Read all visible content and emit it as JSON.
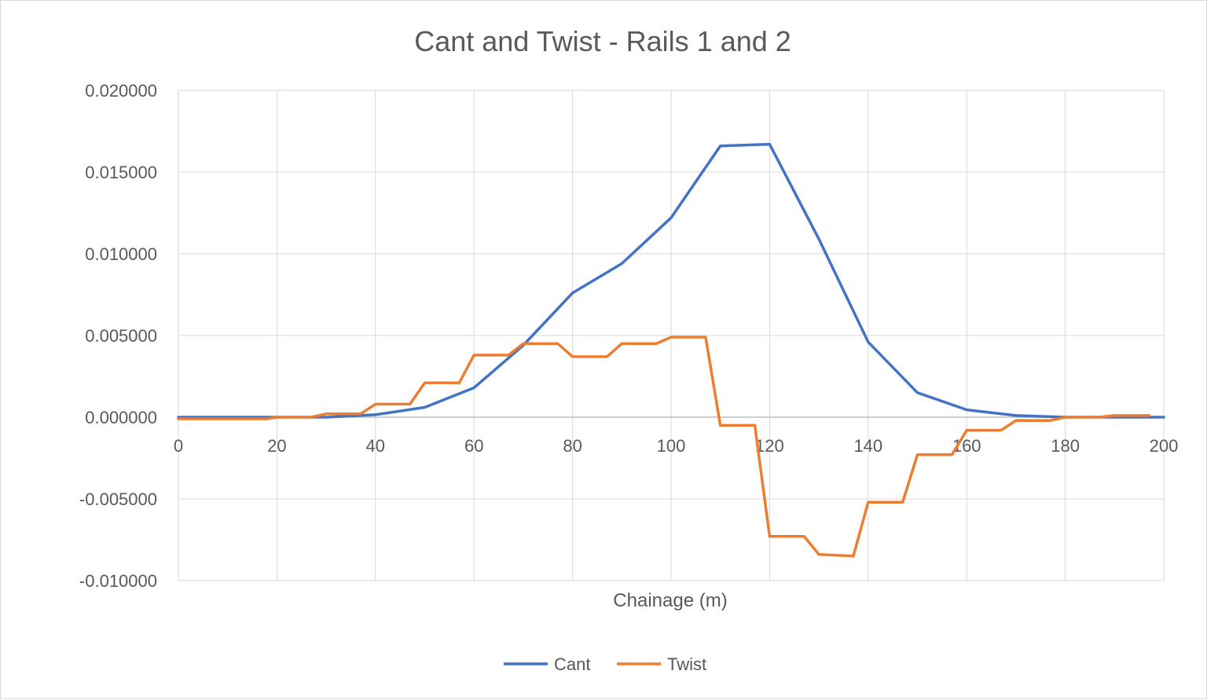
{
  "chart_data": {
    "type": "line",
    "title": "Cant and Twist - Rails 1 and 2",
    "xlabel": "Chainage (m)",
    "ylabel": "",
    "xlim": [
      0,
      200
    ],
    "ylim": [
      -0.01,
      0.02
    ],
    "x_ticks": [
      0,
      20,
      40,
      60,
      80,
      100,
      120,
      140,
      160,
      180,
      200
    ],
    "x_tick_labels": [
      "0",
      "20",
      "40",
      "60",
      "80",
      "100",
      "120",
      "140",
      "160",
      "180",
      "200"
    ],
    "y_ticks": [
      0.02,
      0.015,
      0.01,
      0.005,
      0.0,
      -0.005,
      -0.01
    ],
    "y_tick_labels": [
      "0.020000",
      "0.015000",
      "0.010000",
      "0.005000",
      "0.000000",
      "-0.005000",
      "-0.010000"
    ],
    "grid": true,
    "legend_position": "bottom-center",
    "series": [
      {
        "name": "Cant",
        "color": "#4472C4",
        "points": [
          [
            0,
            0.0
          ],
          [
            20,
            0.0
          ],
          [
            30,
            0.0
          ],
          [
            40,
            0.00015
          ],
          [
            50,
            0.0006
          ],
          [
            60,
            0.0018
          ],
          [
            70,
            0.0044
          ],
          [
            80,
            0.0076
          ],
          [
            90,
            0.0094
          ],
          [
            100,
            0.0122
          ],
          [
            110,
            0.0166
          ],
          [
            120,
            0.0167
          ],
          [
            130,
            0.0109
          ],
          [
            140,
            0.0046
          ],
          [
            150,
            0.0015
          ],
          [
            160,
            0.00045
          ],
          [
            170,
            0.0001
          ],
          [
            180,
            0.0
          ],
          [
            190,
            0.0
          ],
          [
            200,
            0.0
          ]
        ]
      },
      {
        "name": "Twist",
        "color": "#ED7D31",
        "points": [
          [
            0,
            -0.0001
          ],
          [
            18,
            -0.0001
          ],
          [
            20,
            0.0
          ],
          [
            27,
            0.0
          ],
          [
            30,
            0.0002
          ],
          [
            37,
            0.0002
          ],
          [
            40,
            0.0008
          ],
          [
            47,
            0.0008
          ],
          [
            50,
            0.0021
          ],
          [
            57,
            0.0021
          ],
          [
            60,
            0.0038
          ],
          [
            67,
            0.0038
          ],
          [
            70,
            0.0045
          ],
          [
            77,
            0.0045
          ],
          [
            80,
            0.0037
          ],
          [
            87,
            0.0037
          ],
          [
            90,
            0.0045
          ],
          [
            97,
            0.0045
          ],
          [
            100,
            0.0049
          ],
          [
            107,
            0.0049
          ],
          [
            110,
            -0.0005
          ],
          [
            117,
            -0.0005
          ],
          [
            120,
            -0.0073
          ],
          [
            127,
            -0.0073
          ],
          [
            130,
            -0.0084
          ],
          [
            137,
            -0.0085
          ],
          [
            140,
            -0.0052
          ],
          [
            147,
            -0.0052
          ],
          [
            150,
            -0.0023
          ],
          [
            157,
            -0.0023
          ],
          [
            160,
            -0.0008
          ],
          [
            167,
            -0.0008
          ],
          [
            170,
            -0.0002
          ],
          [
            177,
            -0.0002
          ],
          [
            180,
            0.0
          ],
          [
            187,
            0.0
          ],
          [
            190,
            0.0001
          ],
          [
            197,
            0.0001
          ]
        ]
      }
    ]
  }
}
